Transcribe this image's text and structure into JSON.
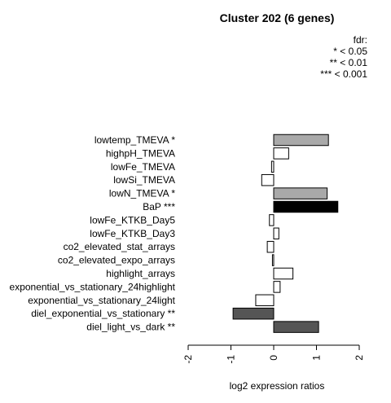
{
  "chart_data": {
    "type": "bar",
    "orientation": "horizontal",
    "title": "Cluster 202 (6 genes)",
    "xlabel": "log2 expression ratios",
    "xlim": [
      -2,
      2
    ],
    "xticks": [
      "-2",
      "-1",
      "0",
      "1",
      "2"
    ],
    "legend": {
      "title": "fdr:",
      "entries": [
        "* < 0.05",
        "** < 0.01",
        "*** < 0.001"
      ],
      "placement": "top-right"
    },
    "categories": [
      "lowtemp_TMEVA *",
      "highpH_TMEVA",
      "lowFe_TMEVA",
      "lowSi_TMEVA",
      "lowN_TMEVA *",
      "BaP ***",
      "lowFe_KTKB_Day5",
      "lowFe_KTKB_Day3",
      "co2_elevated_stat_arrays",
      "co2_elevated_expo_arrays",
      "highlight_arrays",
      "exponential_vs_stationary_24highlight",
      "exponential_vs_stationary_24light",
      "diel_exponential_vs_stationary **",
      "diel_light_vs_dark **"
    ],
    "values": [
      1.28,
      0.35,
      -0.05,
      -0.28,
      1.25,
      1.5,
      -0.1,
      0.12,
      -0.15,
      -0.03,
      0.45,
      0.15,
      -0.42,
      -0.95,
      1.05
    ],
    "colors": [
      "#a9a9a9",
      "#ffffff",
      "#ffffff",
      "#ffffff",
      "#a9a9a9",
      "#000000",
      "#ffffff",
      "#ffffff",
      "#ffffff",
      "#ffffff",
      "#ffffff",
      "#ffffff",
      "#ffffff",
      "#555555",
      "#555555"
    ],
    "grid": false
  }
}
